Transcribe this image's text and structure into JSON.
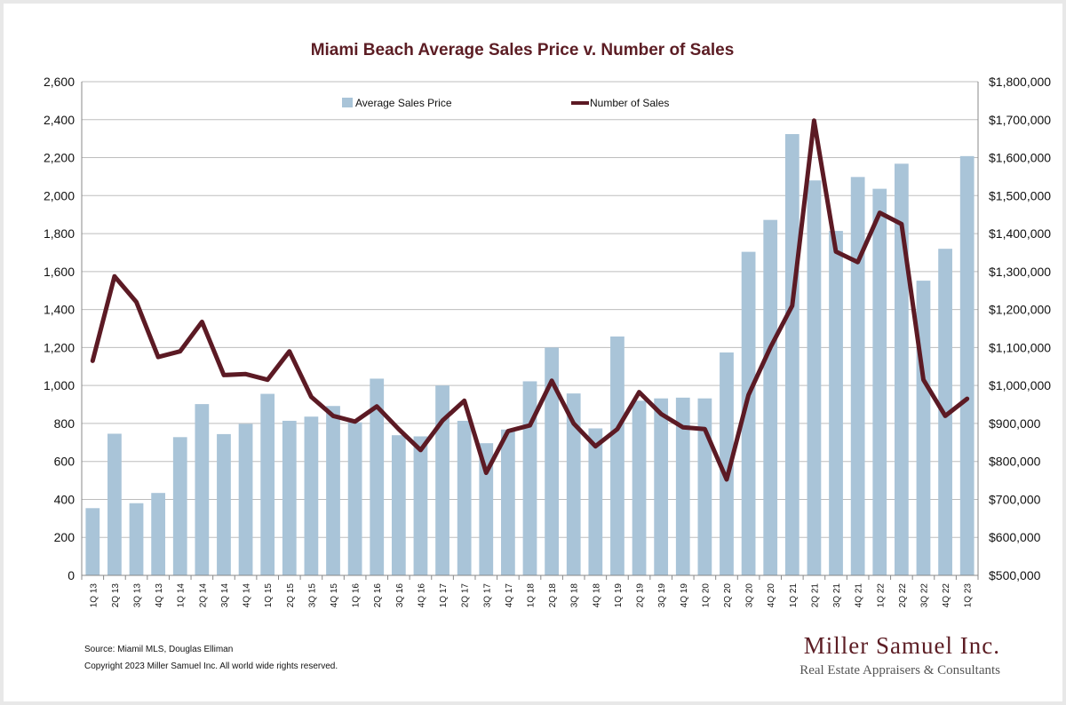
{
  "colors": {
    "bar": "#a9c4d8",
    "line": "#5c1a24",
    "title": "#5c1d24",
    "grid": "#bdbdbd",
    "axis": "#888888"
  },
  "chart_data": {
    "type": "bar",
    "title": "Miami Beach Average Sales Price v. Number of Sales",
    "categories": [
      "1Q 13",
      "2Q 13",
      "3Q 13",
      "4Q 13",
      "1Q 14",
      "2Q 14",
      "3Q 14",
      "4Q 14",
      "1Q 15",
      "2Q 15",
      "3Q 15",
      "4Q 15",
      "1Q 16",
      "2Q 16",
      "3Q 16",
      "4Q 16",
      "1Q 17",
      "2Q 17",
      "3Q 17",
      "4Q 17",
      "1Q 18",
      "2Q 18",
      "3Q 18",
      "4Q 18",
      "1Q 19",
      "2Q 19",
      "3Q 19",
      "4Q 19",
      "1Q 20",
      "2Q 20",
      "3Q 20",
      "4Q 20",
      "1Q 21",
      "2Q 21",
      "3Q 21",
      "4Q 21",
      "1Q 22",
      "2Q 22",
      "3Q 22",
      "4Q 22",
      "1Q 23"
    ],
    "series": [
      {
        "name": "Average Sales Price",
        "type": "bar",
        "axis": "right",
        "values": [
          677000,
          873000,
          690000,
          717000,
          864000,
          951000,
          872000,
          899000,
          978000,
          907000,
          918000,
          946000,
          903000,
          1018000,
          869000,
          866000,
          1000000,
          907000,
          848000,
          884000,
          1011000,
          1100000,
          979000,
          887000,
          1129000,
          960000,
          966000,
          968000,
          966000,
          1087000,
          1352000,
          1436000,
          1662000,
          1540000,
          1407000,
          1549000,
          1518000,
          1584000,
          1276000,
          1360000,
          1604000
        ]
      },
      {
        "name": "Number of Sales",
        "type": "line",
        "axis": "left",
        "values": [
          1130,
          1575,
          1440,
          1150,
          1180,
          1335,
          1055,
          1060,
          1030,
          1180,
          940,
          840,
          810,
          890,
          770,
          660,
          815,
          920,
          540,
          760,
          790,
          1025,
          800,
          680,
          770,
          965,
          850,
          780,
          770,
          505,
          950,
          1200,
          1420,
          2395,
          1705,
          1650,
          1910,
          1850,
          1030,
          840,
          930
        ]
      }
    ],
    "y_left": {
      "min": 0,
      "max": 2600,
      "step": 200,
      "tick_labels": [
        "0",
        "200",
        "400",
        "600",
        "800",
        "1,000",
        "1,200",
        "1,400",
        "1,600",
        "1,800",
        "2,000",
        "2,200",
        "2,400",
        "2,600"
      ]
    },
    "y_right": {
      "min": 500000,
      "max": 1800000,
      "step": 100000,
      "tick_labels": [
        "$500,000",
        "$600,000",
        "$700,000",
        "$800,000",
        "$900,000",
        "$1,000,000",
        "$1,100,000",
        "$1,200,000",
        "$1,300,000",
        "$1,400,000",
        "$1,500,000",
        "$1,600,000",
        "$1,700,000",
        "$1,800,000"
      ]
    },
    "grid": true,
    "legend": "top"
  },
  "footer": {
    "source": "Source: Miamil MLS, Douglas Elliman",
    "copyright": "Copyright 2023 Miller Samuel Inc. All world wide rights reserved."
  },
  "logo": {
    "name": "Miller Samuel Inc.",
    "tagline": "Real Estate Appraisers & Consultants"
  }
}
